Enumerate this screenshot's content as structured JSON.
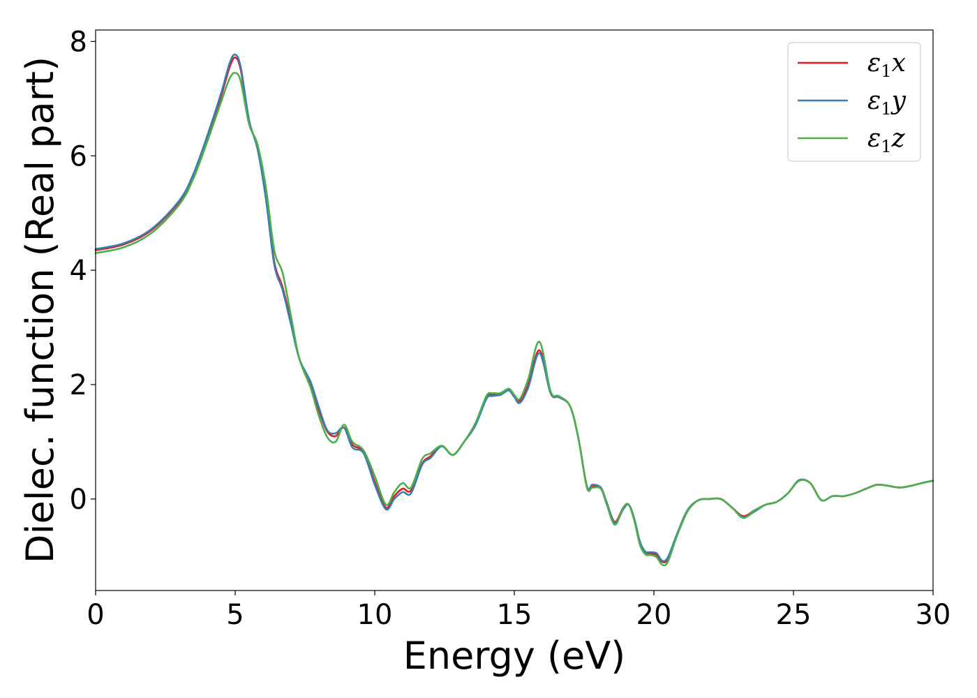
{
  "chart_data": {
    "type": "line",
    "xlabel": "Energy (eV)",
    "ylabel": "Dielec. function (Real part)",
    "xlim": [
      0,
      30
    ],
    "ylim": [
      -1.6,
      8.2
    ],
    "xticks": [
      0,
      5,
      10,
      15,
      20,
      25,
      30
    ],
    "yticks": [
      0,
      2,
      4,
      6,
      8
    ],
    "xtick_labels": [
      "0",
      "5",
      "10",
      "15",
      "20",
      "25",
      "30"
    ],
    "ytick_labels": [
      "0",
      "2",
      "4",
      "6",
      "8"
    ],
    "grid": false,
    "legend_position": "top-right",
    "series": [
      {
        "name": "ε1x",
        "legend": {
          "base": "ε",
          "sub": "1",
          "suffix": "x"
        },
        "color": "#e41a1c",
        "x": [
          0,
          1,
          2,
          3,
          3.5,
          4,
          4.5,
          4.8,
          5,
          5.2,
          5.5,
          5.8,
          6.1,
          6.4,
          6.7,
          7.0,
          7.3,
          7.7,
          8.0,
          8.3,
          8.6,
          8.9,
          9.2,
          9.6,
          10.0,
          10.4,
          10.7,
          11.0,
          11.3,
          11.7,
          12.0,
          12.4,
          12.8,
          13.2,
          13.6,
          14.0,
          14.2,
          14.5,
          14.8,
          15.0,
          15.2,
          15.5,
          15.9,
          16.3,
          16.6,
          17.0,
          17.3,
          17.6,
          17.8,
          18.1,
          18.3,
          18.6,
          18.9,
          19.1,
          19.3,
          19.5,
          19.7,
          19.9,
          20.1,
          20.3,
          20.5,
          20.8,
          21.2,
          21.6,
          22.0,
          22.4,
          22.8,
          23.2,
          23.6,
          24.0,
          24.4,
          24.8,
          25.2,
          25.6,
          26.0,
          26.4,
          26.8,
          27.2,
          27.6,
          28.0,
          28.4,
          28.8,
          29.2,
          29.6,
          30.0
        ],
        "y": [
          4.35,
          4.45,
          4.7,
          5.2,
          5.65,
          6.3,
          7.05,
          7.55,
          7.72,
          7.5,
          6.6,
          6.15,
          5.3,
          4.15,
          3.7,
          3.1,
          2.45,
          2.0,
          1.55,
          1.18,
          1.1,
          1.25,
          0.95,
          0.82,
          0.3,
          -0.15,
          0.05,
          0.18,
          0.15,
          0.62,
          0.75,
          0.93,
          0.77,
          1.0,
          1.3,
          1.78,
          1.82,
          1.85,
          1.92,
          1.8,
          1.72,
          2.0,
          2.6,
          1.85,
          1.78,
          1.62,
          1.05,
          0.22,
          0.22,
          0.2,
          -0.05,
          -0.4,
          -0.15,
          -0.1,
          -0.35,
          -0.75,
          -0.93,
          -0.95,
          -0.98,
          -1.1,
          -1.05,
          -0.65,
          -0.2,
          -0.02,
          0.0,
          0.0,
          -0.15,
          -0.3,
          -0.2,
          -0.1,
          -0.05,
          0.1,
          0.32,
          0.28,
          -0.02,
          0.05,
          0.05,
          0.1,
          0.18,
          0.25,
          0.23,
          0.2,
          0.23,
          0.28,
          0.32
        ]
      },
      {
        "name": "ε1y",
        "legend": {
          "base": "ε",
          "sub": "1",
          "suffix": "y"
        },
        "color": "#377eb8",
        "x": [
          0,
          1,
          2,
          3,
          3.5,
          4,
          4.5,
          4.8,
          5,
          5.2,
          5.5,
          5.8,
          6.1,
          6.4,
          6.7,
          7.0,
          7.3,
          7.7,
          8.0,
          8.3,
          8.6,
          8.9,
          9.2,
          9.6,
          10.0,
          10.4,
          10.7,
          11.0,
          11.3,
          11.7,
          12.0,
          12.4,
          12.8,
          13.2,
          13.6,
          14.0,
          14.2,
          14.5,
          14.8,
          15.0,
          15.2,
          15.5,
          15.9,
          16.3,
          16.6,
          17.0,
          17.3,
          17.6,
          17.8,
          18.1,
          18.3,
          18.6,
          18.9,
          19.1,
          19.3,
          19.5,
          19.7,
          19.9,
          20.1,
          20.3,
          20.5,
          20.8,
          21.2,
          21.6,
          22.0,
          22.4,
          22.8,
          23.2,
          23.6,
          24.0,
          24.4,
          24.8,
          25.2,
          25.6,
          26.0,
          26.4,
          26.8,
          27.2,
          27.6,
          28.0,
          28.4,
          28.8,
          29.2,
          29.6,
          30.0
        ],
        "y": [
          4.37,
          4.47,
          4.72,
          5.22,
          5.68,
          6.35,
          7.1,
          7.62,
          7.77,
          7.55,
          6.62,
          6.12,
          5.25,
          4.1,
          3.65,
          3.05,
          2.45,
          2.05,
          1.6,
          1.2,
          1.15,
          1.25,
          0.9,
          0.8,
          0.25,
          -0.18,
          0.0,
          0.12,
          0.1,
          0.6,
          0.72,
          0.92,
          0.77,
          1.0,
          1.28,
          1.75,
          1.8,
          1.82,
          1.9,
          1.78,
          1.68,
          1.95,
          2.55,
          1.85,
          1.78,
          1.62,
          1.05,
          0.22,
          0.25,
          0.2,
          -0.05,
          -0.42,
          -0.18,
          -0.1,
          -0.35,
          -0.75,
          -0.92,
          -0.93,
          -0.95,
          -1.08,
          -1.02,
          -0.65,
          -0.2,
          -0.02,
          0.0,
          0.0,
          -0.15,
          -0.32,
          -0.22,
          -0.1,
          -0.05,
          0.1,
          0.33,
          0.28,
          -0.02,
          0.05,
          0.05,
          0.1,
          0.18,
          0.25,
          0.23,
          0.2,
          0.23,
          0.28,
          0.32
        ]
      },
      {
        "name": "ε1z",
        "legend": {
          "base": "ε",
          "sub": "1",
          "suffix": "z"
        },
        "color": "#4daf4a",
        "x": [
          0,
          1,
          2,
          3,
          3.5,
          4,
          4.5,
          4.8,
          5,
          5.2,
          5.5,
          5.8,
          6.1,
          6.4,
          6.7,
          7.0,
          7.3,
          7.7,
          8.0,
          8.3,
          8.6,
          8.9,
          9.2,
          9.6,
          10.0,
          10.4,
          10.7,
          11.0,
          11.3,
          11.7,
          12.0,
          12.4,
          12.8,
          13.2,
          13.6,
          14.0,
          14.2,
          14.5,
          14.8,
          15.0,
          15.2,
          15.5,
          15.9,
          16.3,
          16.6,
          17.0,
          17.3,
          17.6,
          17.8,
          18.1,
          18.3,
          18.6,
          18.9,
          19.1,
          19.3,
          19.5,
          19.7,
          19.9,
          20.1,
          20.3,
          20.5,
          20.8,
          21.2,
          21.6,
          22.0,
          22.4,
          22.8,
          23.2,
          23.6,
          24.0,
          24.4,
          24.8,
          25.2,
          25.6,
          26.0,
          26.4,
          26.8,
          27.2,
          27.6,
          28.0,
          28.4,
          28.8,
          29.2,
          29.6,
          30.0
        ],
        "y": [
          4.3,
          4.4,
          4.65,
          5.15,
          5.6,
          6.25,
          6.95,
          7.35,
          7.45,
          7.3,
          6.55,
          6.2,
          5.45,
          4.35,
          3.95,
          3.2,
          2.45,
          1.95,
          1.45,
          1.08,
          1.0,
          1.3,
          1.0,
          0.85,
          0.4,
          -0.1,
          0.12,
          0.28,
          0.2,
          0.7,
          0.8,
          0.93,
          0.77,
          1.0,
          1.32,
          1.8,
          1.85,
          1.85,
          1.93,
          1.82,
          1.75,
          2.1,
          2.75,
          1.88,
          1.8,
          1.62,
          1.05,
          0.2,
          0.2,
          0.18,
          -0.08,
          -0.45,
          -0.15,
          -0.1,
          -0.38,
          -0.8,
          -0.97,
          -0.98,
          -1.02,
          -1.15,
          -1.1,
          -0.68,
          -0.22,
          -0.02,
          0.0,
          0.0,
          -0.15,
          -0.33,
          -0.2,
          -0.1,
          -0.05,
          0.1,
          0.32,
          0.28,
          -0.02,
          0.05,
          0.05,
          0.1,
          0.18,
          0.25,
          0.23,
          0.2,
          0.23,
          0.28,
          0.32
        ]
      }
    ]
  }
}
